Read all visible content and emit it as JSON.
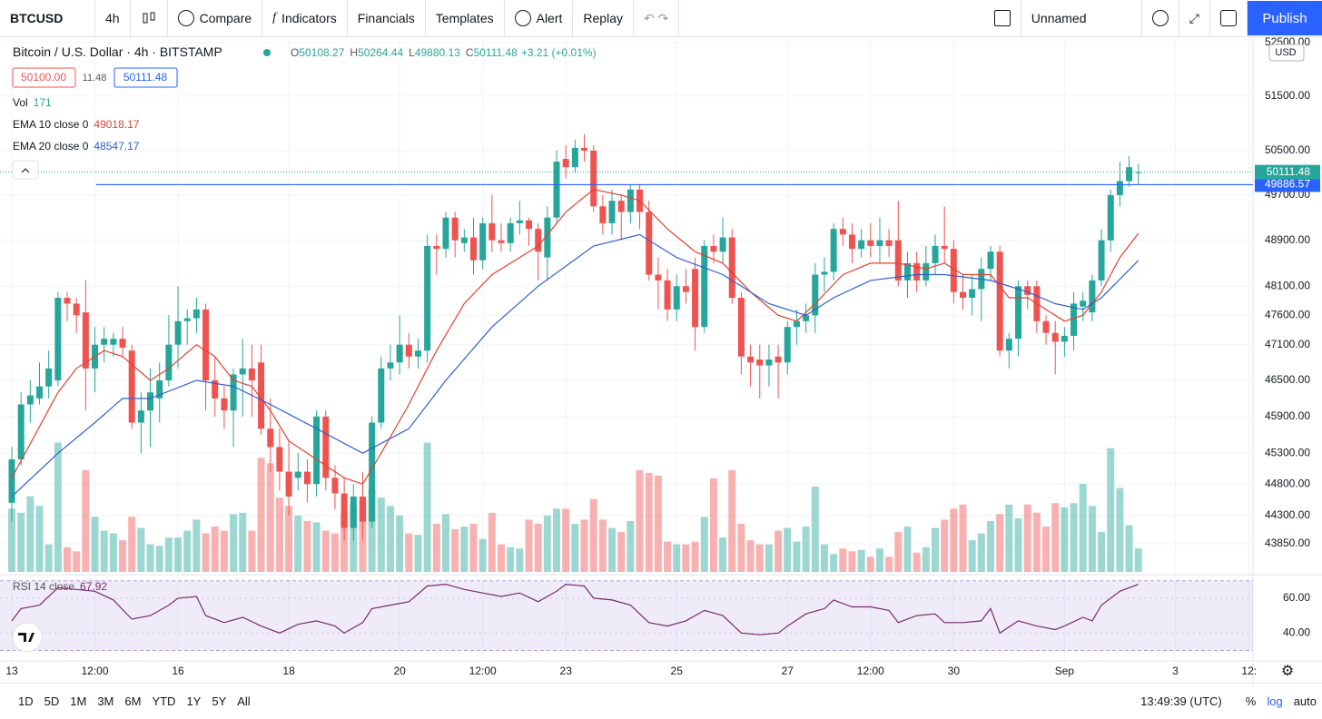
{
  "toolbar": {
    "symbol": "BTCUSD",
    "interval": "4h",
    "items": [
      "Compare",
      "Indicators",
      "Financials",
      "Templates",
      "Alert",
      "Replay"
    ],
    "layout": "Unnamed",
    "publish": "Publish"
  },
  "bottom": {
    "ranges": [
      "1D",
      "5D",
      "1M",
      "3M",
      "6M",
      "YTD",
      "1Y",
      "5Y",
      "All"
    ],
    "time": "13:49:39 (UTC)",
    "scale": [
      "%",
      "log",
      "auto"
    ]
  },
  "chart_data": {
    "type": "candlestick",
    "title": "Bitcoin / U.S. Dollar · 4h · BITSTAMP",
    "ohlc_labels": [
      "O",
      "H",
      "L",
      "C"
    ],
    "change": "+3.21 (+0.01%)",
    "bid": "50100.00",
    "spread": "11.48",
    "ask": "50111.48",
    "currency": "USD",
    "volume_name": "Vol",
    "up_color": "#26a69a",
    "down_color": "#ef5350",
    "log": true,
    "grid": true,
    "ylim": [
      43380,
      52600
    ],
    "volume_ylim": [
      0,
      3900
    ],
    "yticks": [
      {
        "value": 52500,
        "label": "52500.00"
      },
      {
        "value": 51500,
        "label": "51500.00"
      },
      {
        "value": 50500,
        "label": "50500.00"
      },
      {
        "value": 49700,
        "label": "49700.00"
      },
      {
        "value": 48900,
        "label": "48900.00"
      },
      {
        "value": 48100,
        "label": "48100.00"
      },
      {
        "value": 47600,
        "label": "47600.00"
      },
      {
        "value": 47100,
        "label": "47100.00"
      },
      {
        "value": 46500,
        "label": "46500.00"
      },
      {
        "value": 45900,
        "label": "45900.00"
      },
      {
        "value": 45300,
        "label": "45300.00"
      },
      {
        "value": 44800,
        "label": "44800.00"
      },
      {
        "value": 44300,
        "label": "44300.00"
      },
      {
        "value": 43850,
        "label": "43850.00"
      }
    ],
    "xticks": [
      {
        "value": 0,
        "label": "13"
      },
      {
        "value": 9,
        "label": "12:00"
      },
      {
        "value": 18,
        "label": "16"
      },
      {
        "value": 30,
        "label": "18"
      },
      {
        "value": 42,
        "label": "20"
      },
      {
        "value": 51,
        "label": "12:00"
      },
      {
        "value": 60,
        "label": "23"
      },
      {
        "value": 72,
        "label": "25"
      },
      {
        "value": 84,
        "label": "27"
      },
      {
        "value": 93,
        "label": "12:00"
      },
      {
        "value": 102,
        "label": "30"
      },
      {
        "value": 114,
        "label": "Sep"
      },
      {
        "value": 126,
        "label": "3"
      },
      {
        "value": 134,
        "label": "12:"
      }
    ],
    "hline": {
      "value": 49886.57,
      "color": "#2962ff"
    },
    "open": [
      44500,
      45200,
      46100,
      46200,
      46400,
      46500,
      47900,
      47800,
      47650,
      46700,
      47100,
      47100,
      47200,
      47000,
      45800,
      46000,
      46200,
      46500,
      47100,
      47500,
      47550,
      47700,
      46500,
      46200,
      46000,
      46600,
      46700,
      46800,
      45700,
      45400,
      45000,
      44900,
      45000,
      44800,
      45900,
      44900,
      44650,
      44100,
      44600,
      44200,
      45800,
      46700,
      46800,
      47100,
      46900,
      47000,
      48800,
      48750,
      49300,
      48850,
      48950,
      48550,
      49200,
      48900,
      48850,
      49200,
      49250,
      49100,
      48600,
      49300,
      50350,
      50200,
      50550,
      50500,
      49500,
      49200,
      49600,
      49400,
      49800,
      49400,
      48300,
      48200,
      47700,
      48100,
      48400,
      47400,
      48800,
      48700,
      48950,
      47900,
      46900,
      46850,
      46750,
      46900,
      46800,
      47400,
      47500,
      47600,
      48300,
      48350,
      49100,
      49000,
      48750,
      48900,
      48800,
      48900,
      48900,
      48200,
      48500,
      48200,
      48500,
      48800,
      48750,
      48000,
      47900,
      48050,
      48400,
      48700,
      47000,
      47200,
      48100,
      48100,
      47500,
      47300,
      47150,
      47250,
      47750,
      47650,
      48200,
      48900,
      49700,
      49950,
      50108.27
    ],
    "high": [
      45400,
      46300,
      46500,
      46800,
      47000,
      48000,
      48000,
      47900,
      48200,
      47400,
      47400,
      47300,
      47400,
      47100,
      46300,
      46700,
      46800,
      47600,
      48100,
      47700,
      47900,
      47800,
      46900,
      46400,
      46700,
      47200,
      47100,
      47100,
      46200,
      45700,
      45500,
      45300,
      45200,
      46000,
      46000,
      45100,
      44900,
      44800,
      45000,
      45900,
      46900,
      47100,
      47600,
      47300,
      47200,
      49000,
      49000,
      49400,
      49400,
      49100,
      49300,
      49300,
      49700,
      49200,
      49300,
      49600,
      49300,
      49200,
      49500,
      50500,
      50600,
      50700,
      50800,
      50600,
      49700,
      49800,
      49700,
      49900,
      49900,
      49600,
      48600,
      48400,
      48300,
      48400,
      48600,
      48900,
      49000,
      49300,
      49100,
      48000,
      47100,
      47100,
      47100,
      47100,
      47500,
      47700,
      47800,
      48500,
      48600,
      49200,
      49300,
      49200,
      49100,
      49200,
      49300,
      49100,
      49600,
      48700,
      48700,
      48800,
      49000,
      49500,
      48900,
      48300,
      48300,
      48600,
      48800,
      48800,
      47300,
      48200,
      48200,
      48200,
      47600,
      47500,
      47400,
      48000,
      48000,
      48300,
      49100,
      49800,
      50300,
      50400,
      50264.44
    ],
    "low": [
      44200,
      45100,
      45800,
      46100,
      46200,
      46400,
      47500,
      47300,
      46000,
      46300,
      46800,
      46900,
      46900,
      45700,
      45300,
      45400,
      45800,
      46400,
      46700,
      47100,
      47300,
      46000,
      45900,
      45700,
      45400,
      45900,
      45900,
      45600,
      45000,
      44700,
      44300,
      44700,
      44500,
      44600,
      44700,
      44400,
      43900,
      43900,
      43900,
      44100,
      45700,
      46500,
      46600,
      46700,
      46700,
      46800,
      48300,
      48600,
      48600,
      48700,
      48300,
      48400,
      48700,
      48700,
      48700,
      49000,
      48800,
      48200,
      48200,
      49200,
      50000,
      50100,
      50300,
      49400,
      49000,
      49000,
      48900,
      49200,
      49100,
      48200,
      47700,
      47500,
      47500,
      47800,
      47000,
      47300,
      48500,
      48500,
      47800,
      46600,
      46400,
      46200,
      46400,
      46200,
      46600,
      47100,
      47300,
      47300,
      48000,
      48200,
      48800,
      48500,
      48600,
      48600,
      48500,
      48600,
      48100,
      47900,
      48000,
      48100,
      48300,
      48500,
      47800,
      47700,
      47600,
      47500,
      48200,
      46900,
      46700,
      46900,
      47700,
      47300,
      47100,
      46600,
      46900,
      47000,
      47500,
      47500,
      48100,
      48700,
      49500,
      49850,
      49880.13
    ],
    "close": [
      45200,
      46100,
      46250,
      46400,
      46700,
      47900,
      47800,
      47600,
      46700,
      47100,
      47200,
      47200,
      47050,
      45800,
      46000,
      46300,
      46500,
      47100,
      47500,
      47550,
      47700,
      46500,
      46200,
      46000,
      46600,
      46700,
      46500,
      45700,
      45400,
      45000,
      44600,
      45000,
      44800,
      45900,
      44900,
      44650,
      44100,
      44600,
      44200,
      45800,
      46700,
      46800,
      47100,
      46900,
      47000,
      48800,
      48750,
      49300,
      48900,
      48950,
      48550,
      49200,
      48900,
      48850,
      49200,
      49250,
      49100,
      48700,
      49300,
      50300,
      50200,
      50550,
      50500,
      49500,
      49200,
      49600,
      49400,
      49800,
      49400,
      48300,
      48200,
      47700,
      48100,
      48000,
      47400,
      48800,
      48700,
      48950,
      47900,
      46900,
      46800,
      46750,
      46850,
      46800,
      47400,
      47500,
      47600,
      48300,
      48350,
      49100,
      49000,
      48750,
      48900,
      48800,
      48900,
      48800,
      48200,
      48500,
      48200,
      48500,
      48800,
      48750,
      48000,
      47900,
      48050,
      48400,
      48700,
      47000,
      47200,
      48100,
      47950,
      47500,
      47300,
      47150,
      47250,
      47800,
      47850,
      48200,
      48900,
      49700,
      49950,
      50200,
      50111.48
    ],
    "volume": [
      460,
      430,
      550,
      480,
      200,
      940,
      180,
      150,
      740,
      400,
      300,
      280,
      230,
      400,
      320,
      200,
      190,
      250,
      250,
      300,
      380,
      280,
      330,
      300,
      420,
      430,
      300,
      830,
      790,
      540,
      480,
      410,
      370,
      360,
      300,
      280,
      420,
      480,
      520,
      600,
      540,
      480,
      410,
      280,
      270,
      940,
      350,
      420,
      310,
      330,
      350,
      240,
      430,
      200,
      180,
      170,
      380,
      350,
      410,
      460,
      460,
      350,
      380,
      530,
      380,
      320,
      290,
      370,
      740,
      720,
      700,
      220,
      200,
      200,
      220,
      400,
      680,
      250,
      740,
      350,
      230,
      200,
      200,
      300,
      320,
      220,
      330,
      620,
      200,
      130,
      170,
      150,
      160,
      110,
      170,
      110,
      290,
      330,
      140,
      180,
      320,
      380,
      460,
      490,
      230,
      280,
      370,
      420,
      490,
      390,
      490,
      430,
      330,
      500,
      470,
      500,
      640,
      480,
      290,
      900,
      610,
      340,
      171
    ],
    "series": [
      {
        "name": "EMA 10 close 0",
        "color": "#e0412f",
        "x": [
          0,
          5,
          7,
          10,
          12,
          15,
          17,
          20,
          22,
          24,
          26,
          28,
          30,
          33,
          36,
          38,
          40,
          43,
          46,
          49,
          52,
          55,
          57,
          60,
          63,
          66,
          68,
          71,
          74,
          77,
          80,
          83,
          85,
          87,
          90,
          93,
          96,
          99,
          101,
          103,
          106,
          108,
          110,
          112,
          114,
          116,
          118,
          120,
          122
        ],
        "values": [
          44900,
          46300,
          46700,
          47000,
          46900,
          46500,
          46700,
          47100,
          46900,
          46500,
          46400,
          46000,
          45500,
          45200,
          44900,
          44800,
          45300,
          46100,
          47000,
          47800,
          48300,
          48600,
          48800,
          49400,
          49800,
          49700,
          49600,
          49100,
          48700,
          48500,
          48000,
          47600,
          47500,
          47800,
          48300,
          48500,
          48500,
          48400,
          48500,
          48300,
          48300,
          47900,
          47900,
          47700,
          47500,
          47600,
          48000,
          48600,
          49018.17
        ]
      },
      {
        "name": "EMA 20 close 0",
        "color": "#2f5fd0",
        "x": [
          0,
          5,
          9,
          12,
          15,
          20,
          24,
          28,
          33,
          38,
          43,
          47,
          52,
          57,
          63,
          68,
          72,
          77,
          82,
          86,
          89,
          93,
          98,
          101,
          106,
          110,
          113,
          116,
          118,
          122
        ],
        "values": [
          44600,
          45300,
          45800,
          46200,
          46200,
          46500,
          46400,
          46100,
          45700,
          45300,
          45700,
          46500,
          47400,
          48100,
          48800,
          49000,
          48600,
          48300,
          47800,
          47600,
          47900,
          48200,
          48300,
          48300,
          48200,
          48000,
          47800,
          47700,
          47900,
          48547.17
        ]
      }
    ],
    "rsi": {
      "name": "RSI 14 close",
      "color": "#7a2b6e",
      "ylim": [
        24,
        73
      ],
      "band": [
        30,
        70
      ],
      "yticks": [
        {
          "value": 40,
          "label": "40.00"
        },
        {
          "value": 60,
          "label": "60.00"
        }
      ],
      "x": [
        0,
        1,
        3,
        5,
        7,
        9,
        11,
        13,
        15,
        17,
        18,
        20,
        21,
        23,
        25,
        27,
        29,
        31,
        33,
        35,
        36,
        38,
        39,
        41,
        43,
        45,
        47,
        49,
        51,
        53,
        55,
        57,
        59,
        60,
        62,
        63,
        65,
        67,
        69,
        71,
        73,
        75,
        77,
        79,
        81,
        83,
        84,
        86,
        88,
        89,
        91,
        93,
        95,
        96,
        98,
        100,
        101,
        103,
        105,
        106,
        107,
        109,
        111,
        113,
        114,
        116,
        117,
        118,
        120,
        122
      ],
      "values": [
        47,
        54,
        56,
        66,
        65,
        64,
        59,
        48,
        50,
        56,
        60,
        61,
        50,
        46,
        49,
        44,
        40,
        45,
        47,
        44,
        40,
        46,
        54,
        56,
        58,
        67,
        68,
        65,
        63,
        61,
        63,
        58,
        64,
        68,
        67,
        60,
        59,
        56,
        46,
        44,
        47,
        53,
        50,
        40,
        39,
        40,
        44,
        51,
        54,
        59,
        55,
        55,
        53,
        46,
        50,
        51,
        46,
        46,
        47,
        54,
        40,
        47,
        44,
        42,
        44,
        49,
        47,
        56,
        64,
        67.92
      ]
    }
  }
}
